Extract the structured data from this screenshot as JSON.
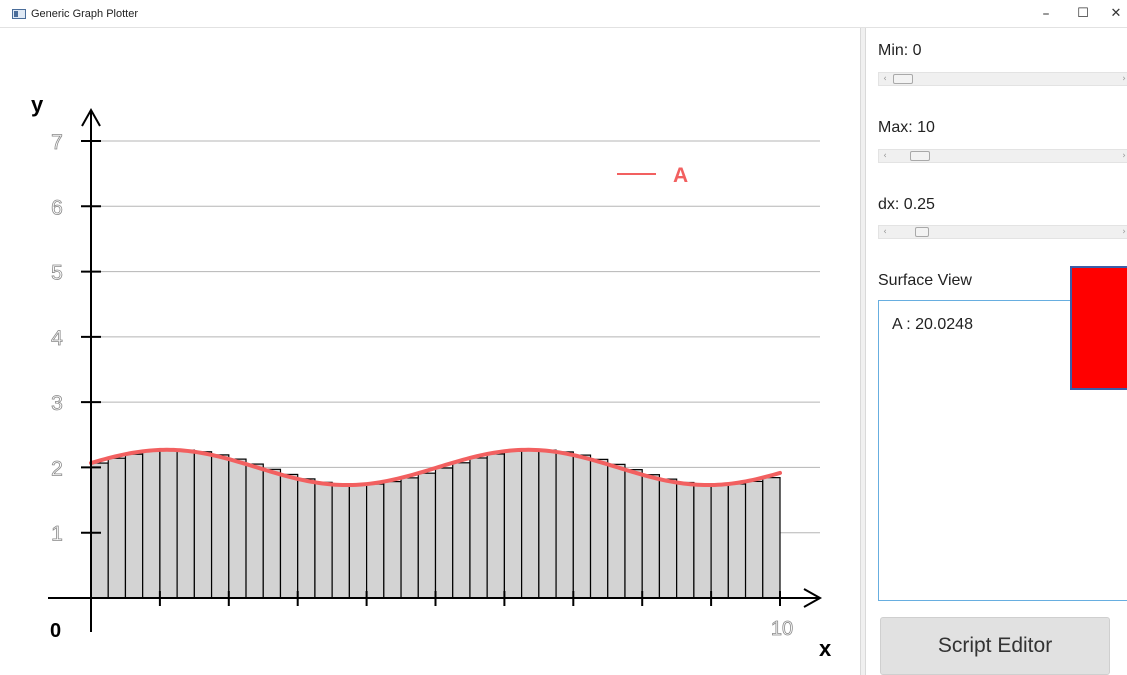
{
  "window": {
    "title": "Generic Graph Plotter",
    "controls": {
      "minimize": "–",
      "maximize": "☐",
      "close": "✕"
    }
  },
  "panel": {
    "min": {
      "label": "Min: 0",
      "value": 0,
      "range": [
        0,
        100
      ]
    },
    "max": {
      "label": "Max: 10",
      "value": 10,
      "range": [
        0,
        100
      ]
    },
    "dx": {
      "label": "dx: 0.25",
      "value": 0.25,
      "range": [
        0,
        2
      ]
    },
    "scroll_arrows": {
      "left": "‹",
      "right": "›"
    },
    "surface_view": {
      "label": "Surface View",
      "entries": [
        "A : 20.0248"
      ],
      "swatch_color": "#ff0000"
    },
    "script_editor_label": "Script Editor"
  },
  "chart_data": {
    "type": "line",
    "title": "",
    "xlabel": "x",
    "ylabel": "y",
    "xlim": [
      0,
      10
    ],
    "ylim": [
      0,
      7
    ],
    "origin_label": "0",
    "x_tick_label": "10",
    "y_ticks": [
      "1",
      "2",
      "3",
      "4",
      "5",
      "6",
      "7"
    ],
    "grid": true,
    "legend": {
      "placement": "top-right",
      "entries": [
        "A"
      ]
    },
    "series": [
      {
        "name": "A",
        "color": "#f26060",
        "function": "2 + 0.27 * sin(1.2*x + 0.25)",
        "x": [
          0,
          0.5,
          1,
          1.5,
          2,
          2.5,
          3,
          3.5,
          4,
          4.5,
          5,
          5.5,
          6,
          6.5,
          7,
          7.5,
          8,
          8.5,
          9,
          9.5,
          10
        ],
        "y": [
          2.07,
          2.2,
          2.26,
          2.23,
          2.12,
          1.96,
          1.81,
          1.73,
          1.76,
          1.88,
          2.04,
          2.19,
          2.26,
          2.24,
          2.14,
          1.98,
          1.83,
          1.74,
          1.75,
          1.85,
          2.02
        ]
      }
    ],
    "riemann": {
      "dx": 0.25,
      "fill": "#d3d3d3",
      "stroke": "#000000"
    }
  }
}
